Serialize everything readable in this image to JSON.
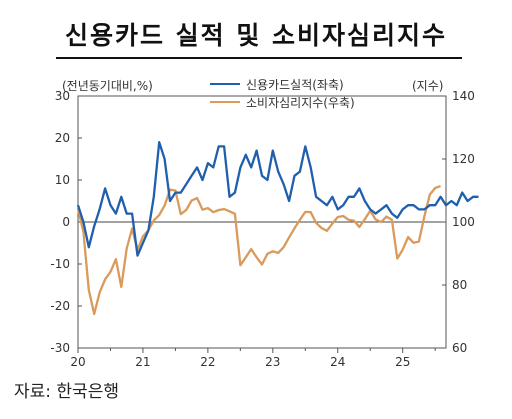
{
  "title": "신용카드 실적 및 소비자심리지수",
  "source": "자료: 한국은행",
  "chart_data": {
    "type": "line",
    "left_unit": "(전년동기대비,%)",
    "right_unit": "(지수)",
    "x_ticks": [
      "20",
      "21",
      "22",
      "23",
      "24",
      "25"
    ],
    "y_left": {
      "min": -30,
      "max": 30,
      "ticks": [
        -30,
        -20,
        -10,
        0,
        10,
        20,
        30
      ]
    },
    "y_right": {
      "min": 60,
      "max": 140,
      "ticks": [
        60,
        80,
        100,
        120,
        140
      ]
    },
    "grid": false,
    "legend_position": "top-center",
    "series": [
      {
        "name": "신용카드실적(좌축)",
        "axis": "left",
        "color": "#1f5fad",
        "start": "2020-01",
        "values": [
          4,
          0,
          -6,
          -1,
          3,
          8,
          4,
          2,
          6,
          2,
          2,
          -8,
          -5,
          -2,
          6,
          19,
          15,
          5,
          7,
          7,
          9,
          11,
          13,
          10,
          14,
          13,
          18,
          18,
          6,
          7,
          13,
          16,
          13,
          17,
          11,
          10,
          17,
          12,
          9,
          5,
          11,
          12,
          18,
          13,
          6,
          5,
          4,
          6,
          3,
          4,
          6,
          6,
          8,
          5,
          3,
          2,
          3,
          4,
          2,
          1,
          3,
          4,
          4,
          3,
          3,
          4,
          4,
          6,
          4,
          5,
          4,
          7,
          5,
          6,
          6
        ]
      },
      {
        "name": "소비자심리지수(우축)",
        "axis": "right",
        "color": "#d99a5b",
        "start": "2020-01",
        "values": [
          104.2,
          96.9,
          78.4,
          70.8,
          77.6,
          81.8,
          84.2,
          88.2,
          79.4,
          91.6,
          97.9,
          91.2,
          95.4,
          97.4,
          100.5,
          102.2,
          105.2,
          110.3,
          110.0,
          102.5,
          103.8,
          106.8,
          107.6,
          103.9,
          104.4,
          103.1,
          103.8,
          104.1,
          103.4,
          102.6,
          86.3,
          88.8,
          91.4,
          88.8,
          86.5,
          89.9,
          90.7,
          90.2,
          92.0,
          95.1,
          98.0,
          100.7,
          103.2,
          103.1,
          99.7,
          98.1,
          97.2,
          99.5,
          101.6,
          101.9,
          100.7,
          100.4,
          98.4,
          100.9,
          103.6,
          100.8,
          100.0,
          101.7,
          100.7,
          88.4,
          91.2,
          95.2,
          93.4,
          93.8,
          101.8,
          108.7,
          110.8,
          111.4
        ]
      }
    ]
  }
}
